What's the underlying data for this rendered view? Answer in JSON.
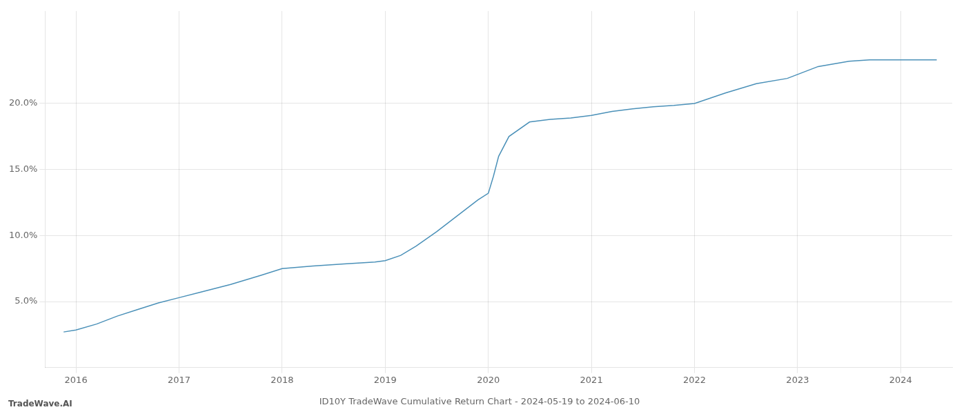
{
  "chart_data": {
    "type": "line",
    "title": "ID10Y TradeWave Cumulative Return Chart - 2024-05-19 to 2024-06-10",
    "annotations": [
      "TradeWave.AI"
    ],
    "color": "#4a90b8",
    "grid": true,
    "x": [
      2015.88,
      2016.0,
      2016.2,
      2016.4,
      2016.6,
      2016.8,
      2017.0,
      2017.2,
      2017.5,
      2017.8,
      2018.0,
      2018.3,
      2018.6,
      2018.9,
      2019.0,
      2019.15,
      2019.3,
      2019.5,
      2019.65,
      2019.8,
      2019.9,
      2020.0,
      2020.05,
      2020.1,
      2020.2,
      2020.4,
      2020.6,
      2020.8,
      2021.0,
      2021.2,
      2021.4,
      2021.6,
      2021.8,
      2022.0,
      2022.3,
      2022.6,
      2022.9,
      2023.0,
      2023.2,
      2023.5,
      2023.7,
      2024.0,
      2024.35
    ],
    "values": [
      2.7,
      2.85,
      3.3,
      3.9,
      4.4,
      4.9,
      5.3,
      5.7,
      6.3,
      7.0,
      7.5,
      7.7,
      7.85,
      8.0,
      8.1,
      8.5,
      9.2,
      10.3,
      11.2,
      12.1,
      12.7,
      13.2,
      14.5,
      16.0,
      17.5,
      18.6,
      18.8,
      18.9,
      19.1,
      19.4,
      19.6,
      19.75,
      19.85,
      20.0,
      20.8,
      21.5,
      21.9,
      22.2,
      22.8,
      23.2,
      23.3,
      23.3,
      23.3
    ],
    "xlim": [
      2015.7,
      2024.5
    ],
    "ylim": [
      0,
      27
    ],
    "xticks": [
      2016,
      2017,
      2018,
      2019,
      2020,
      2021,
      2022,
      2023,
      2024
    ],
    "yticks": [
      {
        "value": 5.0,
        "label": "5.0%"
      },
      {
        "value": 10.0,
        "label": "10.0%"
      },
      {
        "value": 15.0,
        "label": "15.0%"
      },
      {
        "value": 20.0,
        "label": "20.0%"
      }
    ]
  }
}
